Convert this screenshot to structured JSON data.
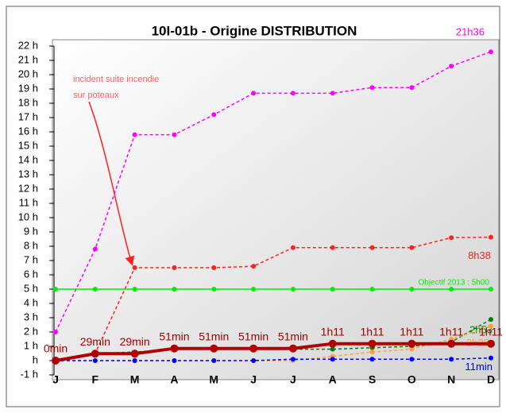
{
  "chart_data": {
    "type": "line",
    "title": "10I-01b - Origine DISTRIBUTION",
    "categories": [
      "J",
      "F",
      "M",
      "A",
      "M",
      "J",
      "J",
      "A",
      "S",
      "O",
      "N",
      "D"
    ],
    "ylim": [
      -1,
      22
    ],
    "yticks": [
      {
        "value": -1,
        "label": "-1 h"
      },
      {
        "value": 0,
        "label": "h"
      },
      {
        "value": 1,
        "label": "1 h"
      },
      {
        "value": 2,
        "label": "2 h"
      },
      {
        "value": 3,
        "label": "3 h"
      },
      {
        "value": 4,
        "label": "4 h"
      },
      {
        "value": 5,
        "label": "5 h"
      },
      {
        "value": 6,
        "label": "6 h"
      },
      {
        "value": 7,
        "label": "7 h"
      },
      {
        "value": 8,
        "label": "8 h"
      },
      {
        "value": 9,
        "label": "9 h"
      },
      {
        "value": 10,
        "label": "10 h"
      },
      {
        "value": 11,
        "label": "11 h"
      },
      {
        "value": 12,
        "label": "12 h"
      },
      {
        "value": 13,
        "label": "13 h"
      },
      {
        "value": 14,
        "label": "14 h"
      },
      {
        "value": 15,
        "label": "15 h"
      },
      {
        "value": 16,
        "label": "16 h"
      },
      {
        "value": 17,
        "label": "17 h"
      },
      {
        "value": 18,
        "label": "18 h"
      },
      {
        "value": 19,
        "label": "19 h"
      },
      {
        "value": 20,
        "label": "20 h"
      },
      {
        "value": 21,
        "label": "21 h"
      },
      {
        "value": 22,
        "label": "22 h"
      }
    ],
    "series": [
      {
        "color": "#ff00ff",
        "dashed": true,
        "values": [
          2,
          7.8,
          15.8,
          15.8,
          17.2,
          18.7,
          18.7,
          18.7,
          19.1,
          19.1,
          20.6,
          21.6
        ],
        "value_labels": [
          null,
          null,
          null,
          null,
          null,
          null,
          null,
          null,
          null,
          null,
          null,
          "21h36"
        ]
      },
      {
        "color": "#ff2020",
        "dashed": true,
        "values": [
          0,
          0.5,
          6.5,
          6.5,
          6.5,
          6.6,
          7.9,
          7.9,
          7.9,
          7.9,
          8.6,
          8.6333
        ],
        "value_labels": [
          null,
          null,
          null,
          null,
          null,
          null,
          null,
          null,
          null,
          null,
          null,
          "8h38"
        ]
      },
      {
        "color": "#00ee00",
        "dashed": false,
        "values": [
          5,
          5,
          5,
          5,
          5,
          5,
          5,
          5,
          5,
          5,
          5,
          5
        ],
        "value_labels": [
          null,
          null,
          null,
          null,
          null,
          null,
          null,
          null,
          null,
          null,
          null,
          "Objectif 2013 : 5h00"
        ]
      },
      {
        "color": "#008000",
        "dashed": true,
        "values": [
          0,
          0.5,
          0.6,
          0.8,
          0.8,
          0.8,
          0.8,
          0.8,
          0.9,
          1.0,
          1.3,
          2.8833
        ],
        "value_labels": [
          null,
          null,
          null,
          null,
          null,
          null,
          null,
          null,
          null,
          null,
          null,
          "2h53"
        ]
      },
      {
        "color": "#ffa040",
        "dashed": true,
        "values": [
          0,
          0,
          0,
          0,
          0,
          0,
          0,
          0.3,
          0.6,
          0.8,
          1.5,
          2.4167
        ],
        "value_labels": [
          null,
          null,
          null,
          null,
          null,
          null,
          null,
          null,
          null,
          null,
          null,
          "2h25"
        ]
      },
      {
        "color": "#0000ff",
        "dashed": true,
        "values": [
          0,
          0,
          0,
          0,
          0,
          0,
          0.1,
          0.1,
          0.1,
          0.1,
          0.1,
          0.1833
        ],
        "value_labels": [
          null,
          null,
          null,
          null,
          null,
          null,
          null,
          null,
          null,
          null,
          null,
          "11min"
        ]
      },
      {
        "color": "#b00000",
        "dashed": false,
        "thick": true,
        "values": [
          0,
          0.4833,
          0.4833,
          0.85,
          0.85,
          0.85,
          0.85,
          1.1833,
          1.1833,
          1.1833,
          1.1833,
          1.1833
        ],
        "value_labels": [
          "0min",
          "29min",
          "29min",
          "51min",
          "51min",
          "51min",
          "51min",
          "1h11",
          "1h11",
          "1h11",
          "1h11",
          "1h11"
        ]
      }
    ],
    "annotation": "incident suite incendie sur poteaux"
  }
}
